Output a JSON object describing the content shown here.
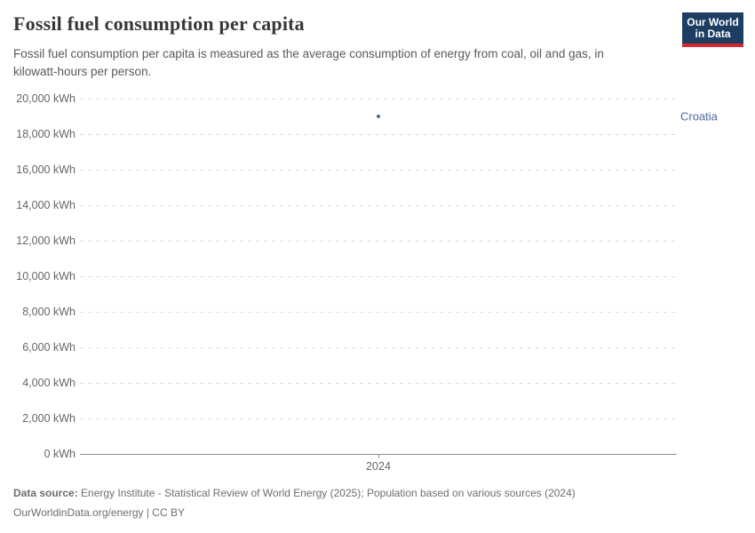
{
  "header": {
    "title": "Fossil fuel consumption per capita",
    "subtitle": "Fossil fuel consumption per capita is measured as the average consumption of energy from coal, oil and gas, in kilowatt-hours per person."
  },
  "logo": {
    "line1": "Our World",
    "line2": "in Data",
    "bg_color": "#1d3d63",
    "bar_color": "#d4292f"
  },
  "chart_data": {
    "type": "scatter",
    "title": "Fossil fuel consumption per capita",
    "x": [
      2024
    ],
    "series": [
      {
        "name": "Croatia",
        "values": [
          19000
        ],
        "color": "#4c6a9c"
      }
    ],
    "xlabel": "",
    "ylabel": "",
    "xtick_labels": [
      "2024"
    ],
    "ylim": [
      0,
      20000
    ],
    "ytick_step": 2000,
    "ytick_labels": [
      "0 kWh",
      "2,000 kWh",
      "4,000 kWh",
      "6,000 kWh",
      "8,000 kWh",
      "10,000 kWh",
      "12,000 kWh",
      "14,000 kWh",
      "16,000 kWh",
      "18,000 kWh",
      "20,000 kWh"
    ],
    "grid": "horizontal-dashed",
    "gridline_color": "#dadada",
    "axis_color": "#8f8f8f",
    "legend_position": "right-of-point"
  },
  "footer": {
    "source_label": "Data source:",
    "source_text": "Energy Institute - Statistical Review of World Energy (2025); Population based on various sources (2024)",
    "license_line": "OurWorldinData.org/energy | CC BY"
  }
}
